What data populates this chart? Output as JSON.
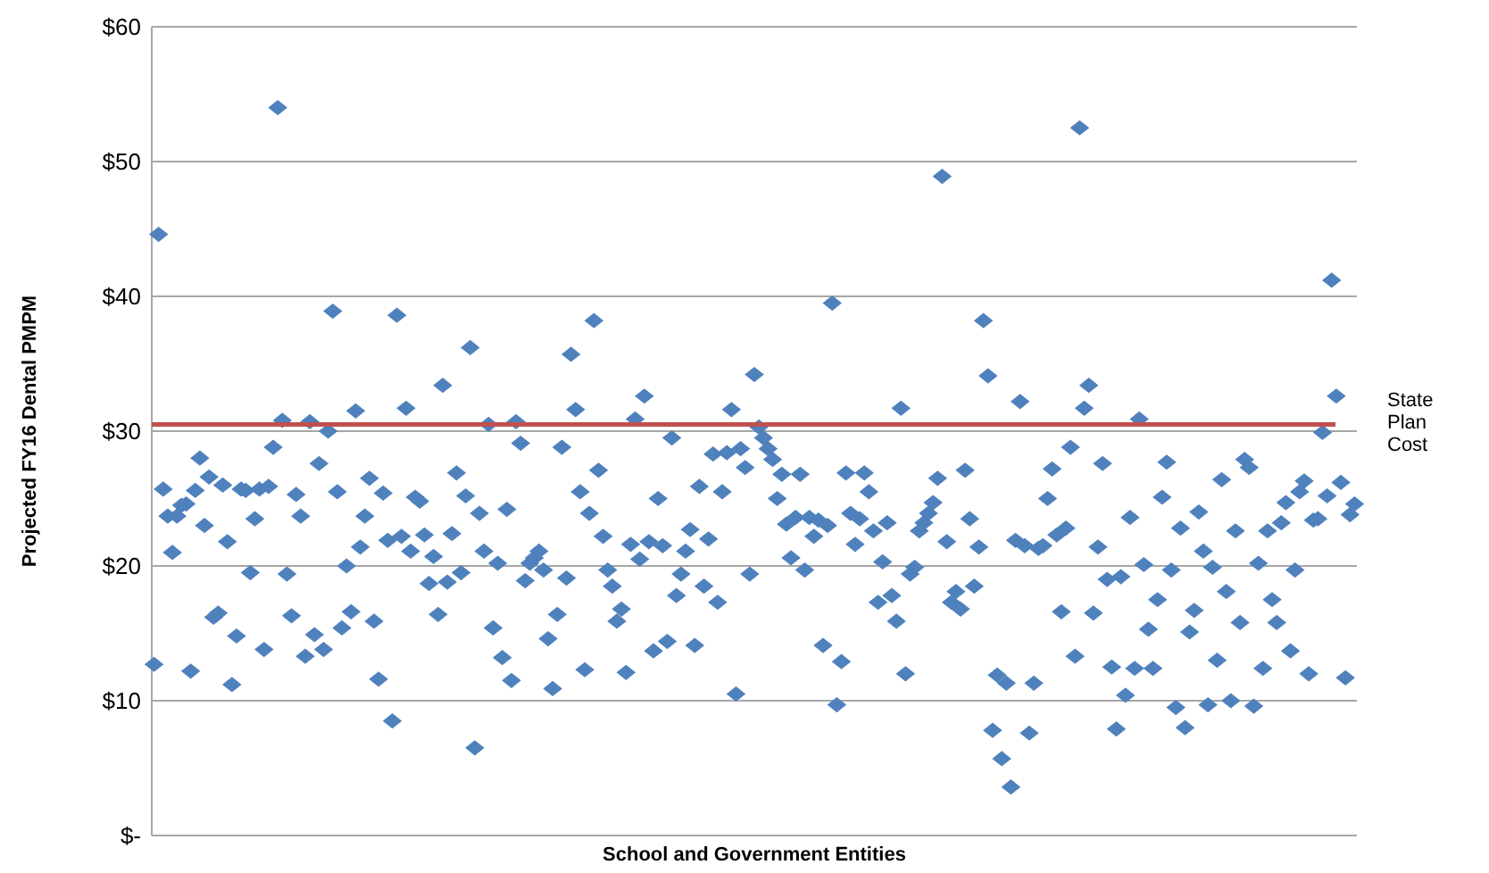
{
  "chart_data": {
    "type": "scatter",
    "xlabel": "School and Government Entities",
    "ylabel": "Projected FY16 Dental PMPM",
    "categories": [
      null,
      null,
      null,
      null,
      null,
      null,
      null,
      null,
      null,
      null,
      null,
      null,
      null,
      null,
      null,
      null,
      null,
      null,
      null,
      null,
      null,
      null,
      null,
      null,
      null,
      null,
      null,
      null,
      null,
      null,
      null,
      null,
      null,
      null,
      null,
      null,
      null,
      null,
      null,
      null,
      null,
      null,
      null,
      null,
      null,
      null,
      null,
      null,
      null,
      null,
      null,
      null,
      null,
      null,
      null,
      null,
      null,
      null,
      null,
      null,
      null,
      null,
      null,
      null,
      null,
      null,
      null,
      null,
      null,
      null,
      null,
      null,
      null,
      null,
      null,
      null,
      null,
      null,
      null,
      null,
      null,
      null,
      null,
      null,
      null,
      null,
      null,
      null,
      null,
      null,
      null,
      null,
      null,
      null,
      null,
      null,
      null,
      null,
      null,
      null,
      null,
      null,
      null,
      null,
      null,
      null,
      null,
      null,
      null,
      null,
      null,
      null,
      null,
      null,
      null,
      null,
      null,
      null,
      null,
      null,
      null,
      null,
      null,
      null,
      null,
      null,
      null,
      null,
      null,
      null,
      null,
      null,
      null,
      null,
      null,
      null,
      null,
      null,
      null,
      null,
      null,
      null,
      null,
      null,
      null,
      null,
      null,
      null,
      null,
      null,
      null,
      null,
      null,
      null,
      null,
      null,
      null,
      null,
      null,
      null,
      null,
      null,
      null,
      null,
      null,
      null,
      null,
      null,
      null,
      null,
      null,
      null,
      null,
      null,
      null,
      null,
      null,
      null,
      null,
      null,
      null,
      null,
      null,
      null,
      null,
      null,
      null,
      null,
      null,
      null,
      null,
      null,
      null,
      null,
      null,
      null,
      null,
      null,
      null,
      null,
      null,
      null,
      null,
      null,
      null,
      null,
      null,
      null,
      null,
      null,
      null,
      null,
      null,
      null,
      null,
      null,
      null,
      null,
      null,
      null,
      null,
      null,
      null,
      null,
      null,
      null,
      null,
      null,
      null,
      null,
      null,
      null,
      null,
      null,
      null,
      null,
      null,
      null,
      null,
      null,
      null,
      null,
      null,
      null,
      null,
      null,
      null,
      null,
      null,
      null,
      null,
      null,
      null,
      null,
      null,
      null,
      null,
      null,
      null,
      null,
      null,
      null,
      null
    ],
    "series": [
      {
        "color": "#4f81bd",
        "values": [
          12.7,
          44.6,
          25.7,
          23.7,
          21,
          23.7,
          24.5,
          24.6,
          12.2,
          25.6,
          28,
          23,
          26.6,
          16.2,
          16.5,
          26,
          21.8,
          11.2,
          14.8,
          25.7,
          25.6,
          19.5,
          23.5,
          25.7,
          13.8,
          25.9,
          28.8,
          54,
          30.8,
          19.4,
          16.3,
          25.3,
          23.7,
          13.3,
          30.7,
          14.9,
          27.6,
          13.8,
          30,
          38.9,
          25.5,
          15.4,
          20,
          16.6,
          31.5,
          21.4,
          23.7,
          26.5,
          15.9,
          11.6,
          25.4,
          21.9,
          8.5,
          38.6,
          22.2,
          31.7,
          21.1,
          25.1,
          24.8,
          22.3,
          18.7,
          20.7,
          16.4,
          33.4,
          18.8,
          22.4,
          26.9,
          19.5,
          25.2,
          36.2,
          6.5,
          23.9,
          21.1,
          30.5,
          15.4,
          20.2,
          13.2,
          24.2,
          11.5,
          30.7,
          29.1,
          18.9,
          20.2,
          20.6,
          21.1,
          19.7,
          14.6,
          10.9,
          16.4,
          28.8,
          19.1,
          35.7,
          31.6,
          25.5,
          12.3,
          23.9,
          38.2,
          27.1,
          22.2,
          19.7,
          18.5,
          15.9,
          16.8,
          12.1,
          21.6,
          30.9,
          20.5,
          32.6,
          21.8,
          13.7,
          25,
          21.5,
          14.4,
          29.5,
          17.8,
          19.4,
          21.1,
          22.7,
          14.1,
          25.9,
          18.5,
          22,
          28.3,
          17.3,
          25.5,
          28.4,
          31.6,
          10.5,
          28.7,
          27.3,
          19.4,
          34.2,
          30.3,
          29.5,
          28.7,
          27.9,
          25,
          26.8,
          23.1,
          20.6,
          23.6,
          26.8,
          19.7,
          23.6,
          22.2,
          23.4,
          14.1,
          23,
          39.5,
          9.7,
          12.9,
          26.9,
          23.9,
          21.6,
          23.5,
          26.9,
          25.5,
          22.6,
          17.3,
          20.3,
          23.2,
          17.8,
          15.9,
          31.7,
          12,
          19.4,
          19.9,
          22.6,
          23.2,
          23.9,
          24.7,
          26.5,
          48.9,
          21.8,
          17.3,
          18.1,
          16.8,
          27.1,
          23.5,
          18.5,
          21.4,
          38.2,
          34.1,
          7.8,
          11.9,
          5.7,
          11.3,
          3.6,
          21.9,
          32.2,
          21.5,
          7.6,
          11.3,
          21.3,
          21.5,
          25,
          27.2,
          22.3,
          16.6,
          22.8,
          28.8,
          13.3,
          52.5,
          31.7,
          33.4,
          16.5,
          21.4,
          27.6,
          19,
          12.5,
          7.9,
          19.2,
          10.4,
          23.6,
          12.4,
          30.9,
          20.1,
          15.3,
          12.4,
          17.5,
          25.1,
          27.7,
          19.7,
          9.5,
          22.8,
          8,
          15.1,
          16.7,
          24,
          21.1,
          9.7,
          19.9,
          13,
          26.4,
          18.1,
          10,
          22.6,
          15.8,
          27.9,
          27.3,
          9.6,
          20.2,
          12.4,
          22.6,
          17.5,
          15.8,
          23.2,
          24.7,
          13.7,
          19.7,
          25.5,
          26.3,
          12,
          23.4,
          23.5,
          29.9,
          25.2,
          41.2,
          32.6,
          26.2,
          11.7,
          23.8,
          24.6
        ]
      }
    ],
    "ylim": [
      0,
      60
    ],
    "yticks": [
      {
        "value": 0,
        "label": "$-"
      },
      {
        "value": 10,
        "label": "$10"
      },
      {
        "value": 20,
        "label": "$20"
      },
      {
        "value": 30,
        "label": "$30"
      },
      {
        "value": 40,
        "label": "$40"
      },
      {
        "value": 50,
        "label": "$50"
      },
      {
        "value": 60,
        "label": "$60"
      }
    ],
    "ref_lines": [
      {
        "axis": "y",
        "value": 30.5,
        "label": "State Plan Cost",
        "color": "#c0504d"
      }
    ],
    "grid": "y",
    "marker": "diamond",
    "tick_labels": "y"
  }
}
